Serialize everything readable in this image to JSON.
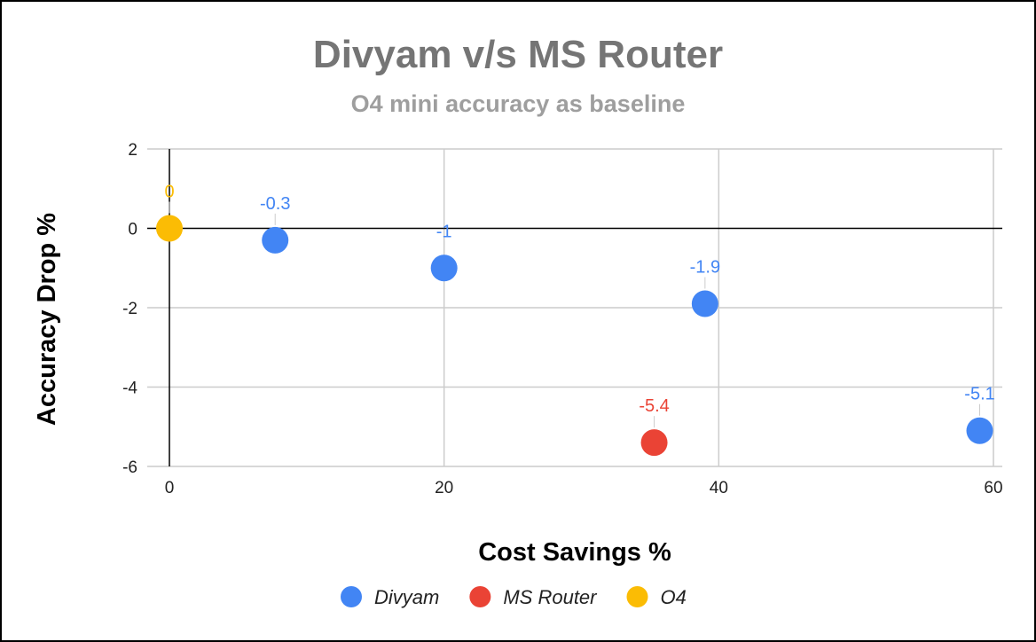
{
  "chart_data": {
    "type": "scatter",
    "title": "Divyam v/s MS Router",
    "subtitle": "O4 mini accuracy as baseline",
    "xlabel": "Cost Savings %",
    "ylabel": "Accuracy Drop %",
    "xlim": [
      0,
      60
    ],
    "ylim": [
      -6,
      2
    ],
    "xticks": [
      "0",
      "20",
      "40",
      "60"
    ],
    "yticks": [
      "2",
      "0",
      "-2",
      "-4",
      "-6"
    ],
    "grid": true,
    "legend_position": "bottom",
    "series": [
      {
        "name": "Divyam",
        "color": "#4285f4",
        "points": [
          {
            "x": 7.7,
            "y": -0.3,
            "label": "-0.3"
          },
          {
            "x": 20,
            "y": -1,
            "label": "-1"
          },
          {
            "x": 39,
            "y": -1.9,
            "label": "-1.9"
          },
          {
            "x": 59,
            "y": -5.1,
            "label": "-5.1"
          }
        ]
      },
      {
        "name": "MS Router",
        "color": "#ea4335",
        "points": [
          {
            "x": 35.3,
            "y": -5.4,
            "label": "-5.4"
          }
        ]
      },
      {
        "name": "O4",
        "color": "#fbbc04",
        "points": [
          {
            "x": 0,
            "y": 0,
            "label": "0"
          }
        ]
      }
    ]
  }
}
